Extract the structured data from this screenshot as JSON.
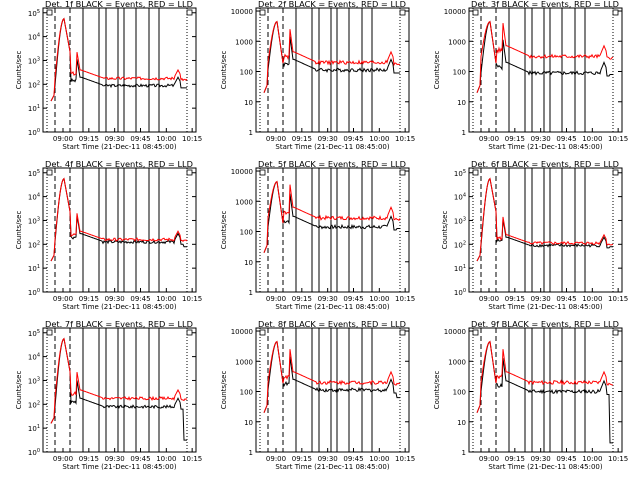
{
  "figure": {
    "ylabel": "Counts/sec",
    "xlabel": "Start Time (21-Dec-11 08:45:00)",
    "xticks": [
      "09:00",
      "09:15",
      "09:30",
      "09:45",
      "10:00",
      "10:15"
    ],
    "legend_text": "BLACK = Events, RED = LLD",
    "colors": {
      "events": "#000000",
      "lld": "#ff0000",
      "axes": "#000000"
    }
  },
  "chart_data": [
    {
      "type": "line",
      "title": "Det. 1f BLACK = Events, RED = LLD",
      "ylabel": "Counts/sec",
      "xlabel": "Start Time (21-Dec-11 08:45:00)",
      "yscale": "log",
      "ytick_style": "sup",
      "ytick_exps": [
        0,
        1,
        2,
        3,
        4,
        5
      ],
      "ylim_exp": [
        0,
        5.2
      ],
      "events_level": 1.95,
      "lld_level": 2.25,
      "dropout": 1.3,
      "events_tail_drop": 1.85,
      "series": [
        {
          "name": "Events",
          "color": "#000000"
        },
        {
          "name": "LLD",
          "color": "#ff0000"
        }
      ]
    },
    {
      "type": "line",
      "title": "Det. 2f BLACK = Events, RED = LLD",
      "ylabel": "Counts/sec",
      "xlabel": "Start Time (21-Dec-11 08:45:00)",
      "yscale": "log",
      "ytick_style": "plain",
      "ytick_labels": [
        "1",
        "10",
        "100",
        "1000",
        "10000"
      ],
      "ytick_exps": [
        0,
        1,
        2,
        3,
        4
      ],
      "ylim_exp": [
        0,
        4.1
      ],
      "events_level": 2.05,
      "lld_level": 2.3,
      "dropout": 1.3,
      "events_tail_drop": 1.95,
      "series": [
        {
          "name": "Events",
          "color": "#000000"
        },
        {
          "name": "LLD",
          "color": "#ff0000"
        }
      ]
    },
    {
      "type": "line",
      "title": "Det. 3f BLACK = Events, RED = LLD",
      "ylabel": "Counts/sec",
      "xlabel": "Start Time (21-Dec-11 08:45:00)",
      "yscale": "log",
      "ytick_style": "plain",
      "ytick_labels": [
        "1",
        "10",
        "100",
        "1000",
        "10000"
      ],
      "ytick_exps": [
        0,
        1,
        2,
        3,
        4
      ],
      "ylim_exp": [
        0,
        4.1
      ],
      "events_level": 1.95,
      "lld_level": 2.5,
      "dropout": 1.3,
      "events_tail_drop": 1.9,
      "series": [
        {
          "name": "Events",
          "color": "#000000"
        },
        {
          "name": "LLD",
          "color": "#ff0000"
        }
      ]
    },
    {
      "type": "line",
      "title": "Det. 4f BLACK = Events, RED = LLD",
      "ylabel": "Counts/sec",
      "xlabel": "Start Time (21-Dec-11 08:45:00)",
      "yscale": "log",
      "ytick_style": "sup",
      "ytick_exps": [
        0,
        1,
        2,
        3,
        4,
        5
      ],
      "ylim_exp": [
        0,
        5.2
      ],
      "events_level": 2.1,
      "lld_level": 2.2,
      "dropout": 1.3,
      "events_tail_drop": 1.9,
      "series": [
        {
          "name": "Events",
          "color": "#000000"
        },
        {
          "name": "LLD",
          "color": "#ff0000"
        }
      ]
    },
    {
      "type": "line",
      "title": "Det. 5f BLACK = Events, RED = LLD",
      "ylabel": "Counts/sec",
      "xlabel": "Start Time (21-Dec-11 08:45:00)",
      "yscale": "log",
      "ytick_style": "plain",
      "ytick_labels": [
        "1",
        "10",
        "100",
        "1000",
        "10000"
      ],
      "ytick_exps": [
        0,
        1,
        2,
        3,
        4
      ],
      "ylim_exp": [
        0,
        4.1
      ],
      "events_level": 2.15,
      "lld_level": 2.45,
      "dropout": 1.3,
      "events_tail_drop": 2.1,
      "series": [
        {
          "name": "Events",
          "color": "#000000"
        },
        {
          "name": "LLD",
          "color": "#ff0000"
        }
      ]
    },
    {
      "type": "line",
      "title": "Det. 6f BLACK = Events, RED = LLD",
      "ylabel": "Counts/sec",
      "xlabel": "Start Time (21-Dec-11 08:45:00)",
      "yscale": "log",
      "ytick_style": "sup",
      "ytick_exps": [
        0,
        1,
        2,
        3,
        4,
        5
      ],
      "ylim_exp": [
        0,
        5.2
      ],
      "events_level": 1.95,
      "lld_level": 2.05,
      "dropout": 1.3,
      "events_tail_drop": 1.9,
      "series": [
        {
          "name": "Events",
          "color": "#000000"
        },
        {
          "name": "LLD",
          "color": "#ff0000"
        }
      ]
    },
    {
      "type": "line",
      "title": "Det. 7f BLACK = Events, RED = LLD",
      "ylabel": "Counts/sec",
      "xlabel": "Start Time (21-Dec-11 08:45:00)",
      "yscale": "log",
      "ytick_style": "sup",
      "ytick_exps": [
        0,
        1,
        2,
        3,
        4,
        5
      ],
      "ylim_exp": [
        0,
        5.2
      ],
      "events_level": 1.9,
      "lld_level": 2.25,
      "dropout": 1.2,
      "events_tail_drop": 0.5,
      "series": [
        {
          "name": "Events",
          "color": "#000000"
        },
        {
          "name": "LLD",
          "color": "#ff0000"
        }
      ]
    },
    {
      "type": "line",
      "title": "Det. 8f BLACK = Events, RED = LLD",
      "ylabel": "Counts/sec",
      "xlabel": "Start Time (21-Dec-11 08:45:00)",
      "yscale": "log",
      "ytick_style": "plain",
      "ytick_labels": [
        "1",
        "10",
        "100",
        "1000",
        "10000"
      ],
      "ytick_exps": [
        0,
        1,
        2,
        3,
        4
      ],
      "ylim_exp": [
        0,
        4.1
      ],
      "events_level": 2.05,
      "lld_level": 2.3,
      "dropout": 1.3,
      "events_tail_drop": 1.8,
      "series": [
        {
          "name": "Events",
          "color": "#000000"
        },
        {
          "name": "LLD",
          "color": "#ff0000"
        }
      ]
    },
    {
      "type": "line",
      "title": "Det. 9f BLACK = Events, RED = LLD",
      "ylabel": "Counts/sec",
      "xlabel": "Start Time (21-Dec-11 08:45:00)",
      "yscale": "log",
      "ytick_style": "plain",
      "ytick_labels": [
        "1",
        "10",
        "100",
        "1000",
        "10000"
      ],
      "ytick_exps": [
        0,
        1,
        2,
        3,
        4
      ],
      "ylim_exp": [
        0,
        4.1
      ],
      "events_level": 2.0,
      "lld_level": 2.3,
      "dropout": 1.3,
      "events_tail_drop": 0.3,
      "series": [
        {
          "name": "Events",
          "color": "#000000"
        },
        {
          "name": "LLD",
          "color": "#ff0000"
        }
      ]
    }
  ]
}
